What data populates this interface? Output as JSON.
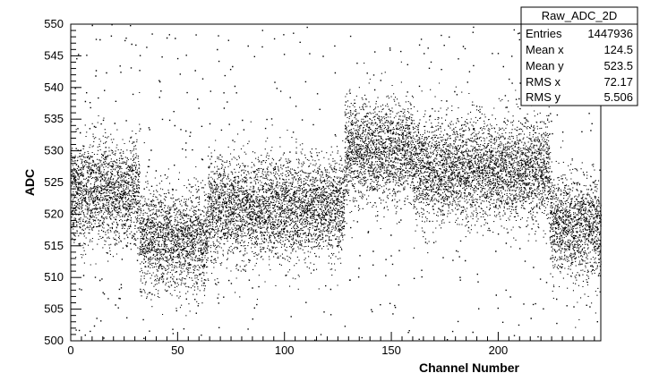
{
  "chart_data": {
    "type": "scatter",
    "title": "",
    "xlabel": "Channel Number",
    "ylabel": "ADC",
    "xlim": [
      0,
      248
    ],
    "ylim": [
      500,
      550
    ],
    "x_ticks": [
      0,
      50,
      100,
      150,
      200
    ],
    "y_ticks": [
      500,
      505,
      510,
      515,
      520,
      525,
      530,
      535,
      540,
      545,
      550
    ],
    "grid": false,
    "marker_color": "#000000",
    "legend": "none",
    "series": [
      {
        "bands": [
          {
            "x": [
              0,
              32
            ],
            "center_y": 523.5,
            "spread_y": 4.0
          },
          {
            "x": [
              32,
              64
            ],
            "center_y": 516.0,
            "spread_y": 4.0
          },
          {
            "x": [
              64,
              128
            ],
            "center_y": 521.0,
            "spread_y": 4.0
          },
          {
            "x": [
              128,
              160
            ],
            "center_y": 530.0,
            "spread_y": 4.0
          },
          {
            "x": [
              160,
              224
            ],
            "center_y": 527.0,
            "spread_y": 4.0
          },
          {
            "x": [
              224,
              248
            ],
            "center_y": 518.0,
            "spread_y": 4.0
          }
        ],
        "outlier_range_y": [
          500,
          550
        ]
      }
    ],
    "stats_box": {
      "title": "Raw_ADC_2D",
      "rows": [
        {
          "label": "Entries",
          "value": "1447936"
        },
        {
          "label": "Mean x",
          "value": "124.5"
        },
        {
          "label": "Mean y",
          "value": "523.5"
        },
        {
          "label": "RMS x",
          "value": "72.17"
        },
        {
          "label": "RMS y",
          "value": "5.506"
        }
      ]
    }
  }
}
